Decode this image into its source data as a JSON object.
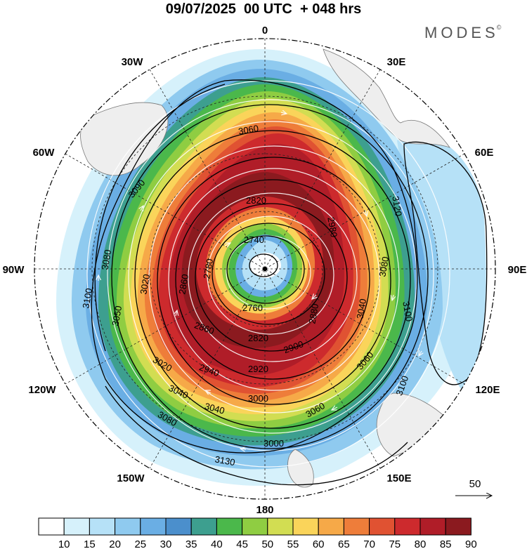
{
  "title": "09/07/2025  00 UTC  + 048 hrs",
  "brand": "MODES",
  "brand_mark": "©",
  "map": {
    "longitude_labels": [
      "0",
      "30E",
      "60E",
      "90E",
      "120E",
      "150E",
      "180",
      "150W",
      "120W",
      "90W",
      "60W",
      "30W"
    ],
    "height_contour_labels": [
      "2740",
      "2760",
      "2780",
      "2820",
      "2820",
      "2860",
      "2860",
      "2880",
      "2900",
      "2920",
      "2940",
      "2980",
      "3000",
      "3000",
      "3020",
      "3020",
      "3040",
      "3040",
      "3040",
      "3050",
      "3060",
      "3060",
      "3060",
      "3080",
      "3080",
      "3080",
      "3090",
      "3100",
      "3100",
      "3100",
      "3120",
      "3130"
    ],
    "vector_reference": "50"
  },
  "colorbar": {
    "levels": [
      "10",
      "15",
      "20",
      "25",
      "30",
      "35",
      "40",
      "45",
      "50",
      "55",
      "60",
      "65",
      "70",
      "75",
      "80",
      "85",
      "90"
    ],
    "colors": [
      "#ffffff",
      "#d6f1fb",
      "#b6e1f7",
      "#8fcaef",
      "#6aaee4",
      "#4b8fcc",
      "#3d9f8f",
      "#4bb84b",
      "#8fcd42",
      "#d2dd52",
      "#fad45a",
      "#f6a948",
      "#ee7d3a",
      "#e05232",
      "#cd2a2d",
      "#b01d28",
      "#8b1a1f"
    ]
  }
}
